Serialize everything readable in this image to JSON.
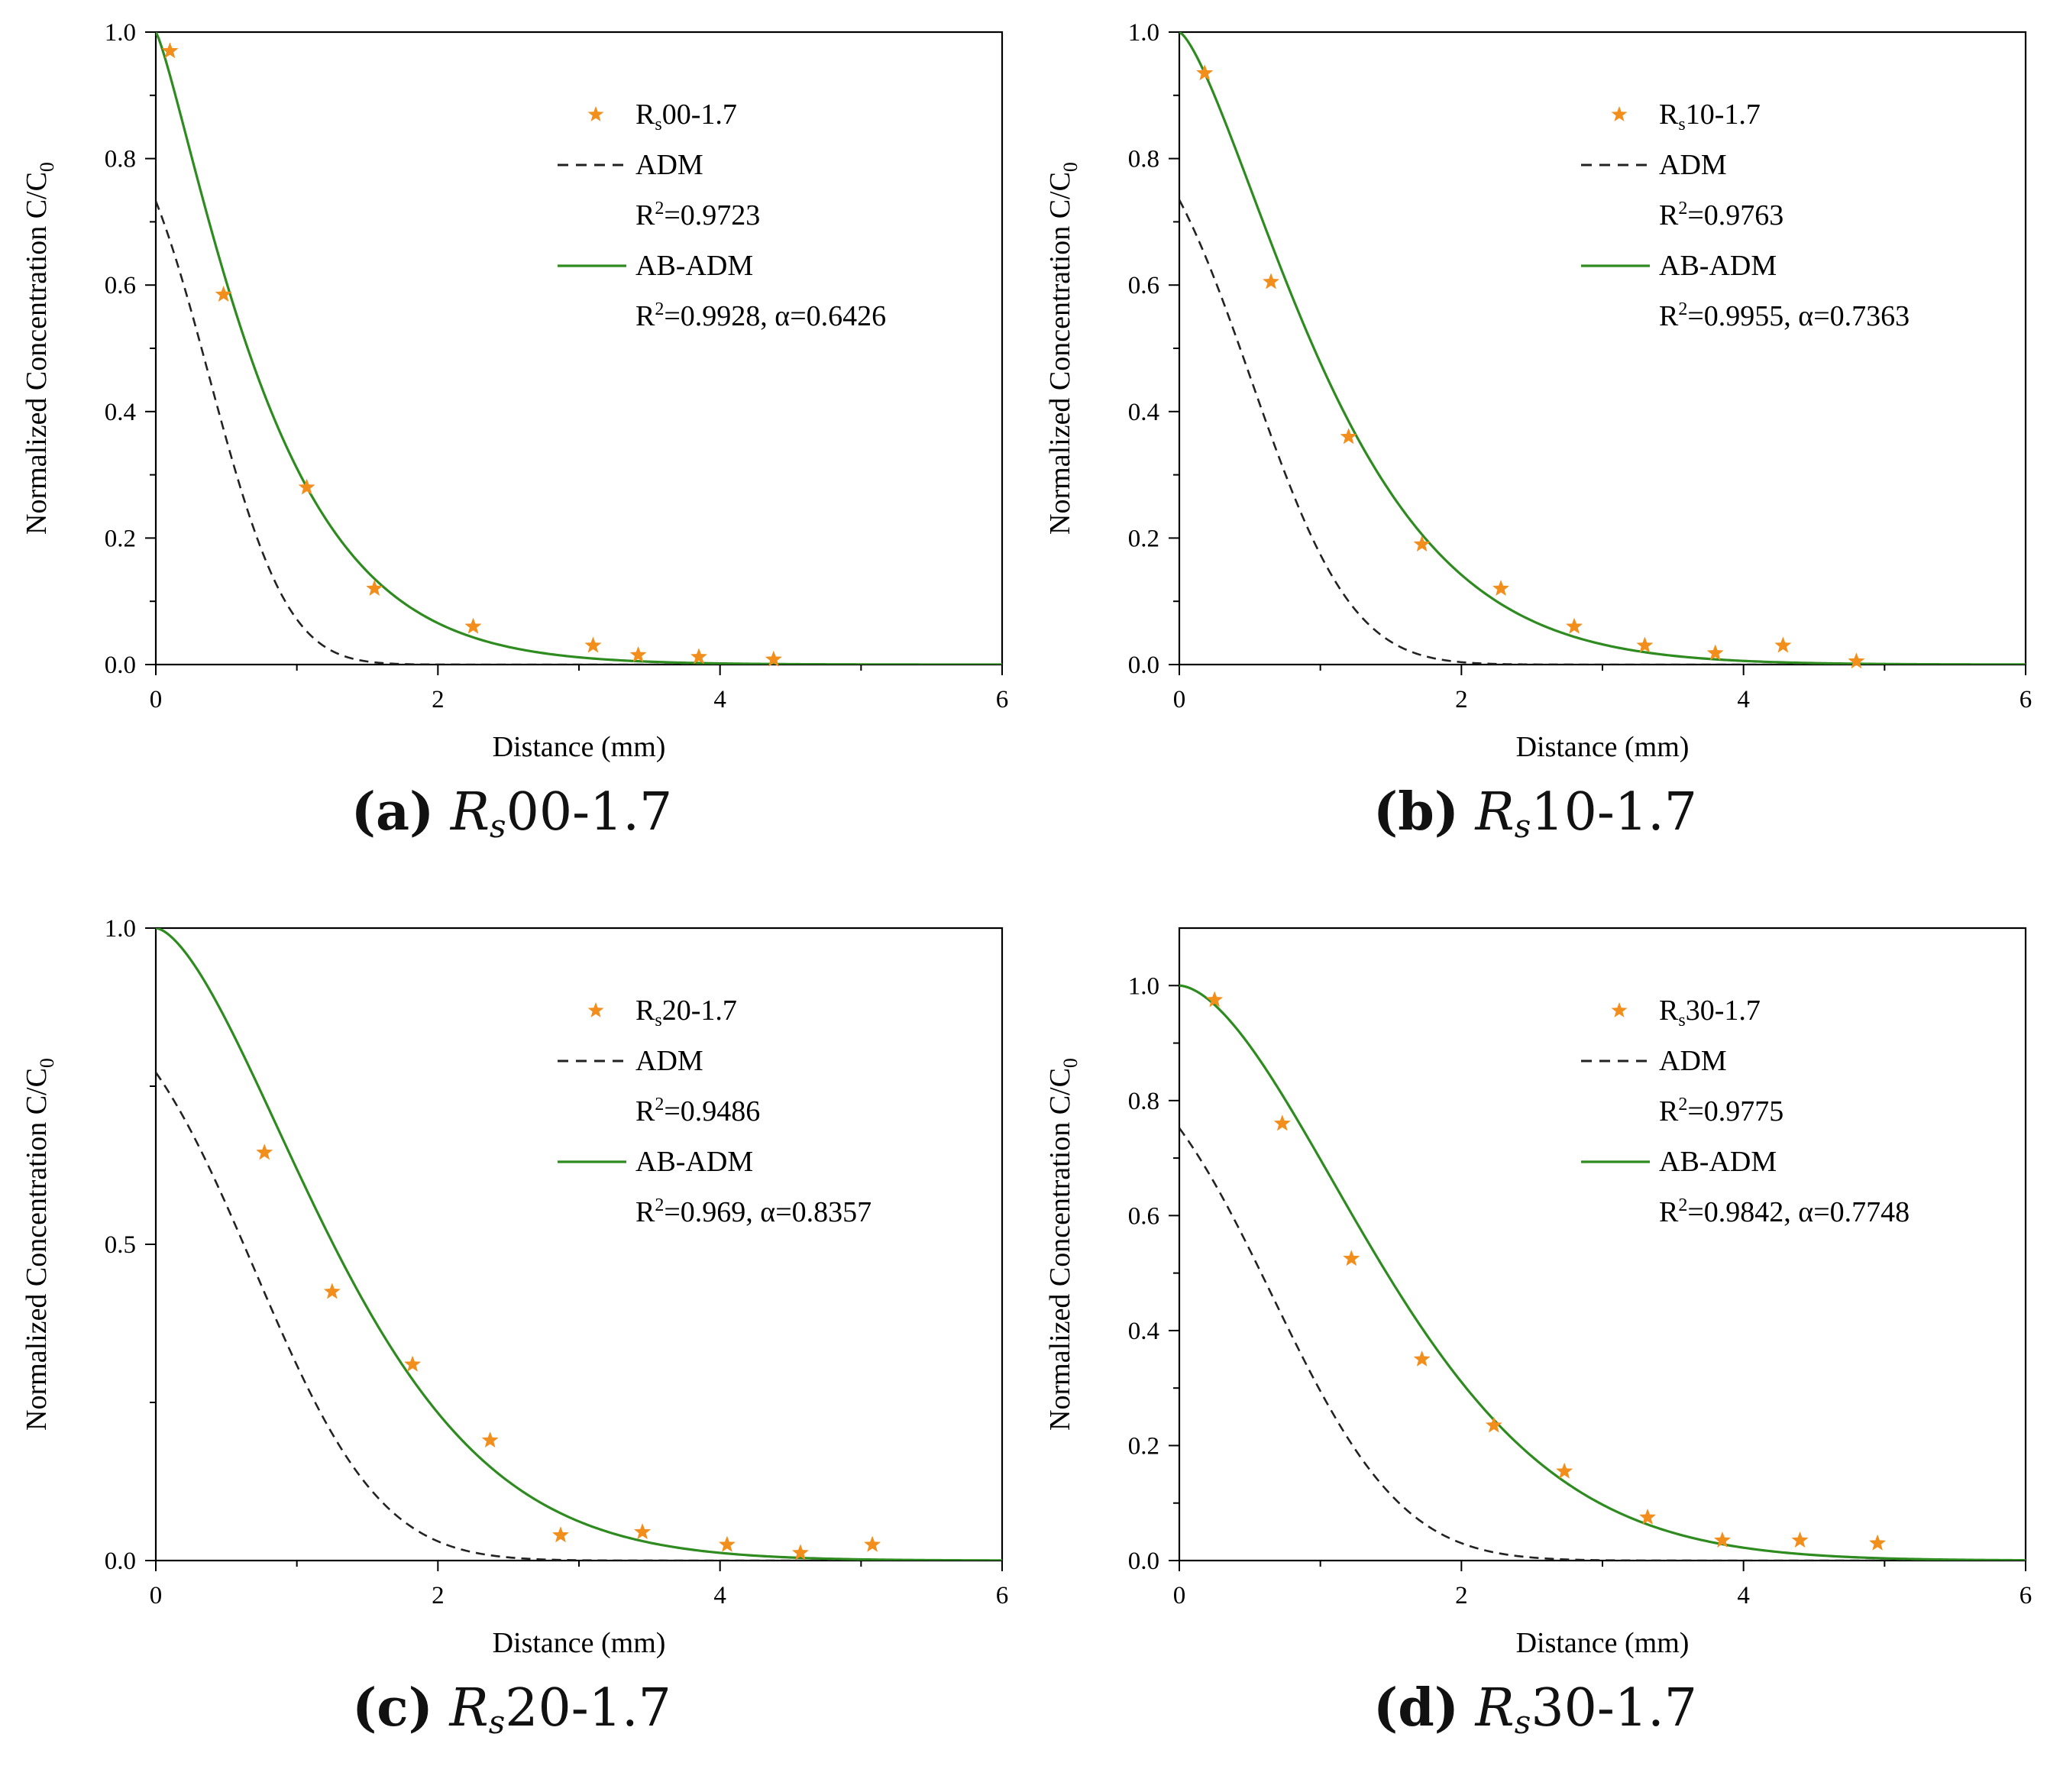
{
  "chart_data": [
    {
      "type": "line",
      "panel_label": "(a)",
      "caption_symbol": "R",
      "caption_subscript": "s",
      "caption_suffix": "00-1.7",
      "xlabel": "Distance (mm)",
      "ylabel": "Normalized Concentration C/C",
      "ylabel_subscript": "0",
      "xlim": [
        0,
        6
      ],
      "ylim": [
        0,
        1.0
      ],
      "xticks": [
        0,
        2,
        4,
        6
      ],
      "xtick_labels": [
        "0",
        "2",
        "4",
        "6"
      ],
      "yticks": [
        0,
        0.2,
        0.4,
        0.6,
        0.8,
        1.0
      ],
      "ytick_labels": [
        "0.0",
        "0.2",
        "0.4",
        "0.6",
        "0.8",
        "1.0"
      ],
      "ytick_minor": [
        0.1,
        0.3,
        0.5,
        0.7,
        0.9
      ],
      "legend_position": "top-right",
      "legend": {
        "points_label_main": "R",
        "points_label_sub": "s",
        "points_label_rest": "00-1.7",
        "adm_label": "ADM",
        "adm_r2": "=0.9723",
        "abadm_label": "AB-ADM",
        "abadm_r2": "=0.9928, α=0.6426"
      },
      "series": [
        {
          "kind": "points",
          "color": "#f28e1c",
          "x": [
            0.1,
            0.48,
            1.07,
            1.55,
            2.25,
            3.1,
            3.42,
            3.85,
            4.38
          ],
          "y": [
            0.97,
            0.585,
            0.28,
            0.12,
            0.06,
            0.03,
            0.015,
            0.012,
            0.008
          ]
        },
        {
          "kind": "adm",
          "color": "#222222",
          "mu": 0.38,
          "sigma": 0.62,
          "amp": 0.908
        },
        {
          "kind": "abadm",
          "color": "#2e8b1f",
          "k": 1.17,
          "p": 1.22
        }
      ]
    },
    {
      "type": "line",
      "panel_label": "(b)",
      "caption_symbol": "R",
      "caption_subscript": "s",
      "caption_suffix": "10-1.7",
      "xlabel": "Distance (mm)",
      "ylabel": "Normalized Concentration C/C",
      "ylabel_subscript": "0",
      "xlim": [
        0,
        6
      ],
      "ylim": [
        0,
        1.0
      ],
      "xticks": [
        0,
        2,
        4,
        6
      ],
      "xtick_labels": [
        "0",
        "2",
        "4",
        "6"
      ],
      "yticks": [
        0,
        0.2,
        0.4,
        0.6,
        0.8,
        1.0
      ],
      "ytick_labels": [
        "0.0",
        "0.2",
        "0.4",
        "0.6",
        "0.8",
        "1.0"
      ],
      "ytick_minor": [
        0.1,
        0.3,
        0.5,
        0.7,
        0.9
      ],
      "legend_position": "top-right",
      "legend": {
        "points_label_main": "R",
        "points_label_sub": "s",
        "points_label_rest": "10-1.7",
        "adm_label": "ADM",
        "adm_r2": "=0.9763",
        "abadm_label": "AB-ADM",
        "abadm_r2": "=0.9955, α=0.7363"
      },
      "series": [
        {
          "kind": "points",
          "color": "#f28e1c",
          "x": [
            0.18,
            0.65,
            1.2,
            1.72,
            2.28,
            2.8,
            3.3,
            3.8,
            4.28,
            4.8
          ],
          "y": [
            0.935,
            0.605,
            0.36,
            0.19,
            0.12,
            0.06,
            0.03,
            0.018,
            0.03,
            0.005
          ]
        },
        {
          "kind": "adm",
          "color": "#222222",
          "mu": 0.51,
          "sigma": 0.8,
          "amp": 0.9
        },
        {
          "kind": "abadm",
          "color": "#2e8b1f",
          "k": 0.74,
          "p": 1.4
        }
      ]
    },
    {
      "type": "line",
      "panel_label": "(c)",
      "caption_symbol": "R",
      "caption_subscript": "s",
      "caption_suffix": "20-1.7",
      "xlabel": "Distance (mm)",
      "ylabel": "Normalized Concentration C/C",
      "ylabel_subscript": "0",
      "xlim": [
        0,
        6
      ],
      "ylim": [
        0,
        1.0
      ],
      "xticks": [
        0,
        2,
        4,
        6
      ],
      "xtick_labels": [
        "0",
        "2",
        "4",
        "6"
      ],
      "yticks": [
        0,
        0.5,
        1.0
      ],
      "ytick_labels": [
        "0.0",
        "0.5",
        "1.0"
      ],
      "ytick_minor": [
        0.25,
        0.75
      ],
      "legend_position": "top-right",
      "legend": {
        "points_label_main": "R",
        "points_label_sub": "s",
        "points_label_rest": "20-1.7",
        "adm_label": "ADM",
        "adm_r2": "=0.9486",
        "abadm_label": "AB-ADM",
        "abadm_r2": "=0.969, α=0.8357"
      },
      "series": [
        {
          "kind": "points",
          "color": "#f28e1c",
          "x": [
            0.77,
            1.25,
            1.82,
            2.37,
            2.87,
            3.45,
            4.05,
            4.57,
            5.08
          ],
          "y": [
            0.645,
            0.425,
            0.31,
            0.19,
            0.04,
            0.045,
            0.025,
            0.012,
            0.025
          ]
        },
        {
          "kind": "adm",
          "color": "#222222",
          "mu": 0.7,
          "sigma": 1.0,
          "amp": 0.92
        },
        {
          "kind": "abadm",
          "color": "#2e8b1f",
          "k": 0.48,
          "p": 1.6
        }
      ]
    },
    {
      "type": "line",
      "panel_label": "(d)",
      "caption_symbol": "R",
      "caption_subscript": "s",
      "caption_suffix": "30-1.7",
      "xlabel": "Distance (mm)",
      "ylabel": "Normalized Concentration C/C",
      "ylabel_subscript": "0",
      "xlim": [
        0,
        6
      ],
      "ylim": [
        0,
        1.1
      ],
      "xticks": [
        0,
        2,
        4,
        6
      ],
      "xtick_labels": [
        "0",
        "2",
        "4",
        "6"
      ],
      "yticks": [
        0,
        0.2,
        0.4,
        0.6,
        0.8,
        1.0
      ],
      "ytick_labels": [
        "0.0",
        "0.2",
        "0.4",
        "0.6",
        "0.8",
        "1.0"
      ],
      "ytick_minor": [
        0.1,
        0.3,
        0.5,
        0.7,
        0.9
      ],
      "legend_position": "top-right",
      "legend": {
        "points_label_main": "R",
        "points_label_sub": "s",
        "points_label_rest": "30-1.7",
        "adm_label": "ADM",
        "adm_r2": "=0.9775",
        "abadm_label": "AB-ADM",
        "abadm_r2": "=0.9842, α=0.7748"
      },
      "series": [
        {
          "kind": "points",
          "color": "#f28e1c",
          "x": [
            0.25,
            0.73,
            1.22,
            1.72,
            2.23,
            2.73,
            3.32,
            3.85,
            4.4,
            4.95
          ],
          "y": [
            0.975,
            0.76,
            0.525,
            0.35,
            0.235,
            0.155,
            0.075,
            0.035,
            0.035,
            0.03
          ]
        },
        {
          "kind": "adm",
          "color": "#222222",
          "mu": 0.66,
          "sigma": 1.03,
          "amp": 0.92
        },
        {
          "kind": "abadm",
          "color": "#2e8b1f",
          "k": 0.36,
          "p": 1.7
        }
      ]
    }
  ]
}
